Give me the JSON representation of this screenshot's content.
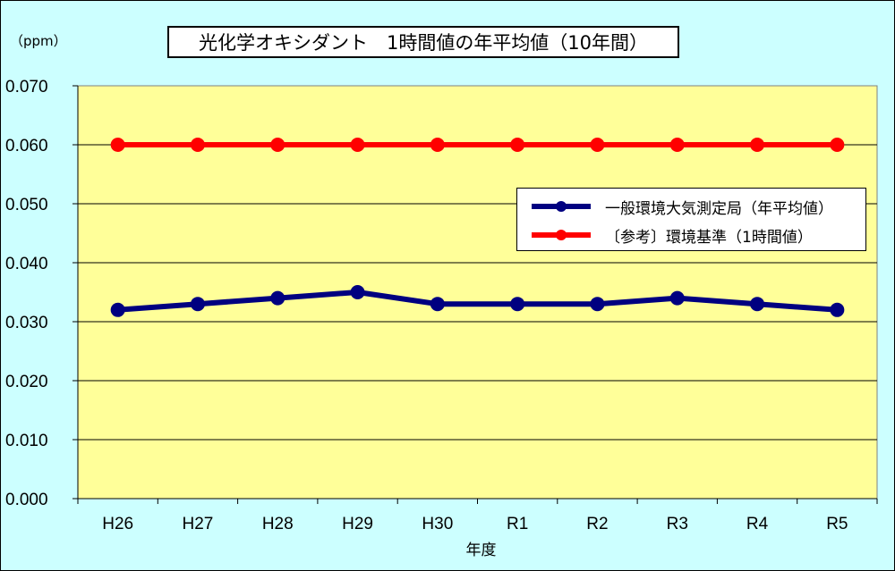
{
  "unit_label": "（ppm）",
  "chart_data": {
    "type": "line",
    "title": "光化学オキシダント　1時間値の年平均値（10年間）",
    "xlabel": "年度",
    "ylabel": "（ppm）",
    "categories": [
      "H26",
      "H27",
      "H28",
      "H29",
      "H30",
      "R1",
      "R2",
      "R3",
      "R4",
      "R5"
    ],
    "ylim": [
      0,
      0.07
    ],
    "yticks": [
      "0.000",
      "0.010",
      "0.020",
      "0.030",
      "0.040",
      "0.050",
      "0.060",
      "0.070"
    ],
    "grid": true,
    "legend_position": "right",
    "plot_background": "#ffff99",
    "series": [
      {
        "name": "一般環境大気測定局（年平均値）",
        "color": "#000080",
        "values": [
          0.032,
          0.033,
          0.034,
          0.035,
          0.033,
          0.033,
          0.033,
          0.034,
          0.033,
          0.032
        ]
      },
      {
        "name": "〔参考〕環境基準（1時間値）",
        "color": "#ff0000",
        "values": [
          0.06,
          0.06,
          0.06,
          0.06,
          0.06,
          0.06,
          0.06,
          0.06,
          0.06,
          0.06
        ]
      }
    ]
  }
}
